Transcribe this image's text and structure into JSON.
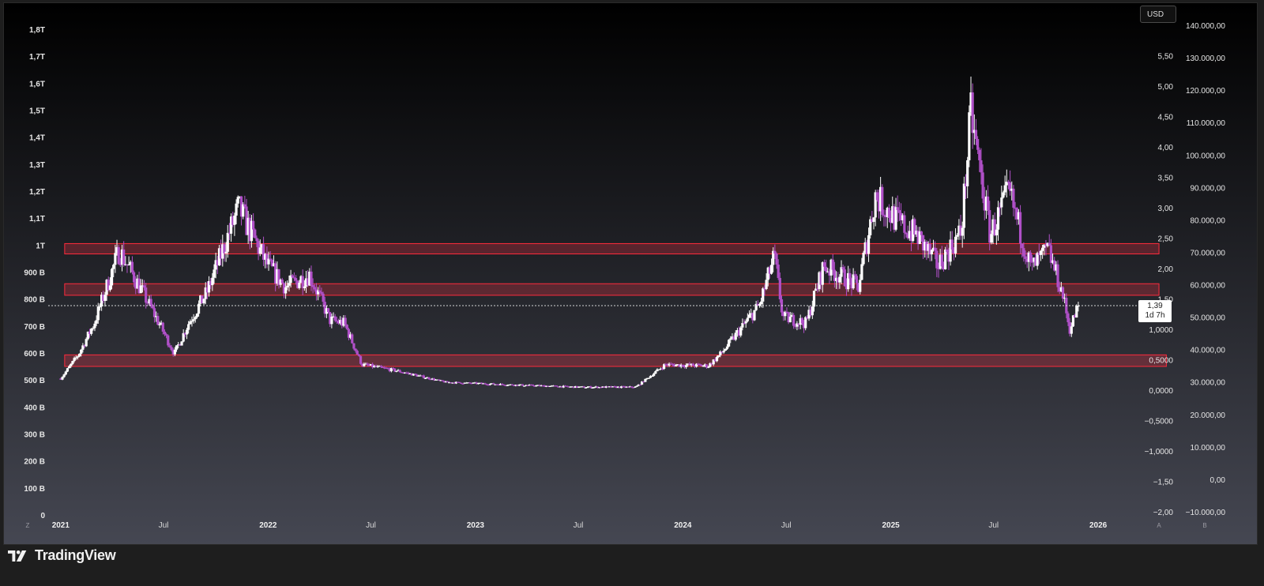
{
  "colors": {
    "candle_up": "#ffffff",
    "candle_down": "#b050c8",
    "zone_fill": "rgba(255,50,70,0.26)",
    "zone_border": "#ff2a3c",
    "background_top": "#000000",
    "background_bottom": "#454752"
  },
  "currency_label": "USD",
  "price_tag": {
    "value": "1,39",
    "countdown": "1d 7h"
  },
  "brand": {
    "name": "TradingView",
    "icon": "tradingview-logo-icon"
  },
  "chart_data": {
    "type": "candlestick",
    "x_axis": {
      "labels": [
        "2021",
        "Jul",
        "2022",
        "Jul",
        "2023",
        "Jul",
        "2024",
        "Jul",
        "2025",
        "Jul",
        "2026"
      ],
      "bold": [
        true,
        false,
        true,
        false,
        true,
        false,
        true,
        false,
        true,
        false,
        true
      ]
    },
    "left_axis": {
      "labels": [
        "1,8T",
        "1,7T",
        "1,6T",
        "1,5T",
        "1,4T",
        "1,3T",
        "1,2T",
        "1,1T",
        "1T",
        "900 B",
        "800 B",
        "700 B",
        "600 B",
        "500 B",
        "400 B",
        "300 B",
        "200 B",
        "100 B",
        "0"
      ],
      "range": [
        0,
        1800000000000
      ]
    },
    "mid_axis": {
      "labels": [
        "5,50",
        "5,00",
        "4,50",
        "4,00",
        "3,50",
        "3,00",
        "2,50",
        "2,00",
        "1,50",
        "1,0000",
        "0,5000",
        "0,0000",
        "−0,5000",
        "−1,0000",
        "−1,50",
        "−2,00"
      ],
      "range": [
        -2.0,
        6.0
      ]
    },
    "right_axis": {
      "labels": [
        "140.000,00",
        "130.000,00",
        "120.000,00",
        "110.000,00",
        "100.000,00",
        "90.000,00",
        "80.000,00",
        "70.000,00",
        "60.000,00",
        "50.000,00",
        "40.000,00",
        "30.000,00",
        "20.000,00",
        "10.000,00",
        "0,00",
        "−10.000,00"
      ],
      "range": [
        -10000,
        140000
      ]
    },
    "corner_labels": {
      "left": "Z",
      "mid": "A",
      "right": "B"
    },
    "current_price": 1.39,
    "zones": [
      {
        "from_date": "2021-01-08",
        "to_date": "2026-04-18",
        "low": 2.24,
        "high": 2.41
      },
      {
        "from_date": "2021-01-08",
        "to_date": "2026-04-18",
        "low": 1.56,
        "high": 1.75
      },
      {
        "from_date": "2021-01-08",
        "to_date": "2026-05-01",
        "low": 0.39,
        "high": 0.58
      }
    ],
    "anchors": [
      [
        "2021-01-01",
        0.19
      ],
      [
        "2021-02-01",
        0.58
      ],
      [
        "2021-03-01",
        1.1
      ],
      [
        "2021-04-14",
        2.3
      ],
      [
        "2021-05-20",
        1.7
      ],
      [
        "2021-06-22",
        1.12
      ],
      [
        "2021-07-20",
        0.6
      ],
      [
        "2021-08-15",
        1.12
      ],
      [
        "2021-09-15",
        1.6
      ],
      [
        "2021-11-10",
        3.0
      ],
      [
        "2021-12-31",
        2.05
      ],
      [
        "2022-02-01",
        1.7
      ],
      [
        "2022-03-15",
        1.9
      ],
      [
        "2022-04-20",
        1.15
      ],
      [
        "2022-05-15",
        1.1
      ],
      [
        "2022-06-15",
        0.42
      ],
      [
        "2022-08-15",
        0.32
      ],
      [
        "2022-11-10",
        0.13
      ],
      [
        "2023-03-01",
        0.09
      ],
      [
        "2023-07-01",
        0.05
      ],
      [
        "2023-10-10",
        0.05
      ],
      [
        "2023-12-01",
        0.42
      ],
      [
        "2024-02-15",
        0.4
      ],
      [
        "2024-03-10",
        0.62
      ],
      [
        "2024-05-15",
        1.4
      ],
      [
        "2024-06-10",
        2.2
      ],
      [
        "2024-06-25",
        1.2
      ],
      [
        "2024-08-05",
        1.1
      ],
      [
        "2024-09-05",
        2.05
      ],
      [
        "2024-11-05",
        1.7
      ],
      [
        "2024-12-05",
        3.2
      ],
      [
        "2025-01-15",
        2.75
      ],
      [
        "2025-02-15",
        2.55
      ],
      [
        "2025-03-25",
        2.05
      ],
      [
        "2025-05-05",
        2.6
      ],
      [
        "2025-05-22",
        4.55
      ],
      [
        "2025-06-25",
        2.55
      ],
      [
        "2025-07-28",
        3.25
      ],
      [
        "2025-09-05",
        2.0
      ],
      [
        "2025-10-05",
        2.3
      ],
      [
        "2025-10-30",
        1.6
      ],
      [
        "2025-11-12",
        1.0
      ],
      [
        "2025-11-27",
        1.39
      ]
    ]
  }
}
